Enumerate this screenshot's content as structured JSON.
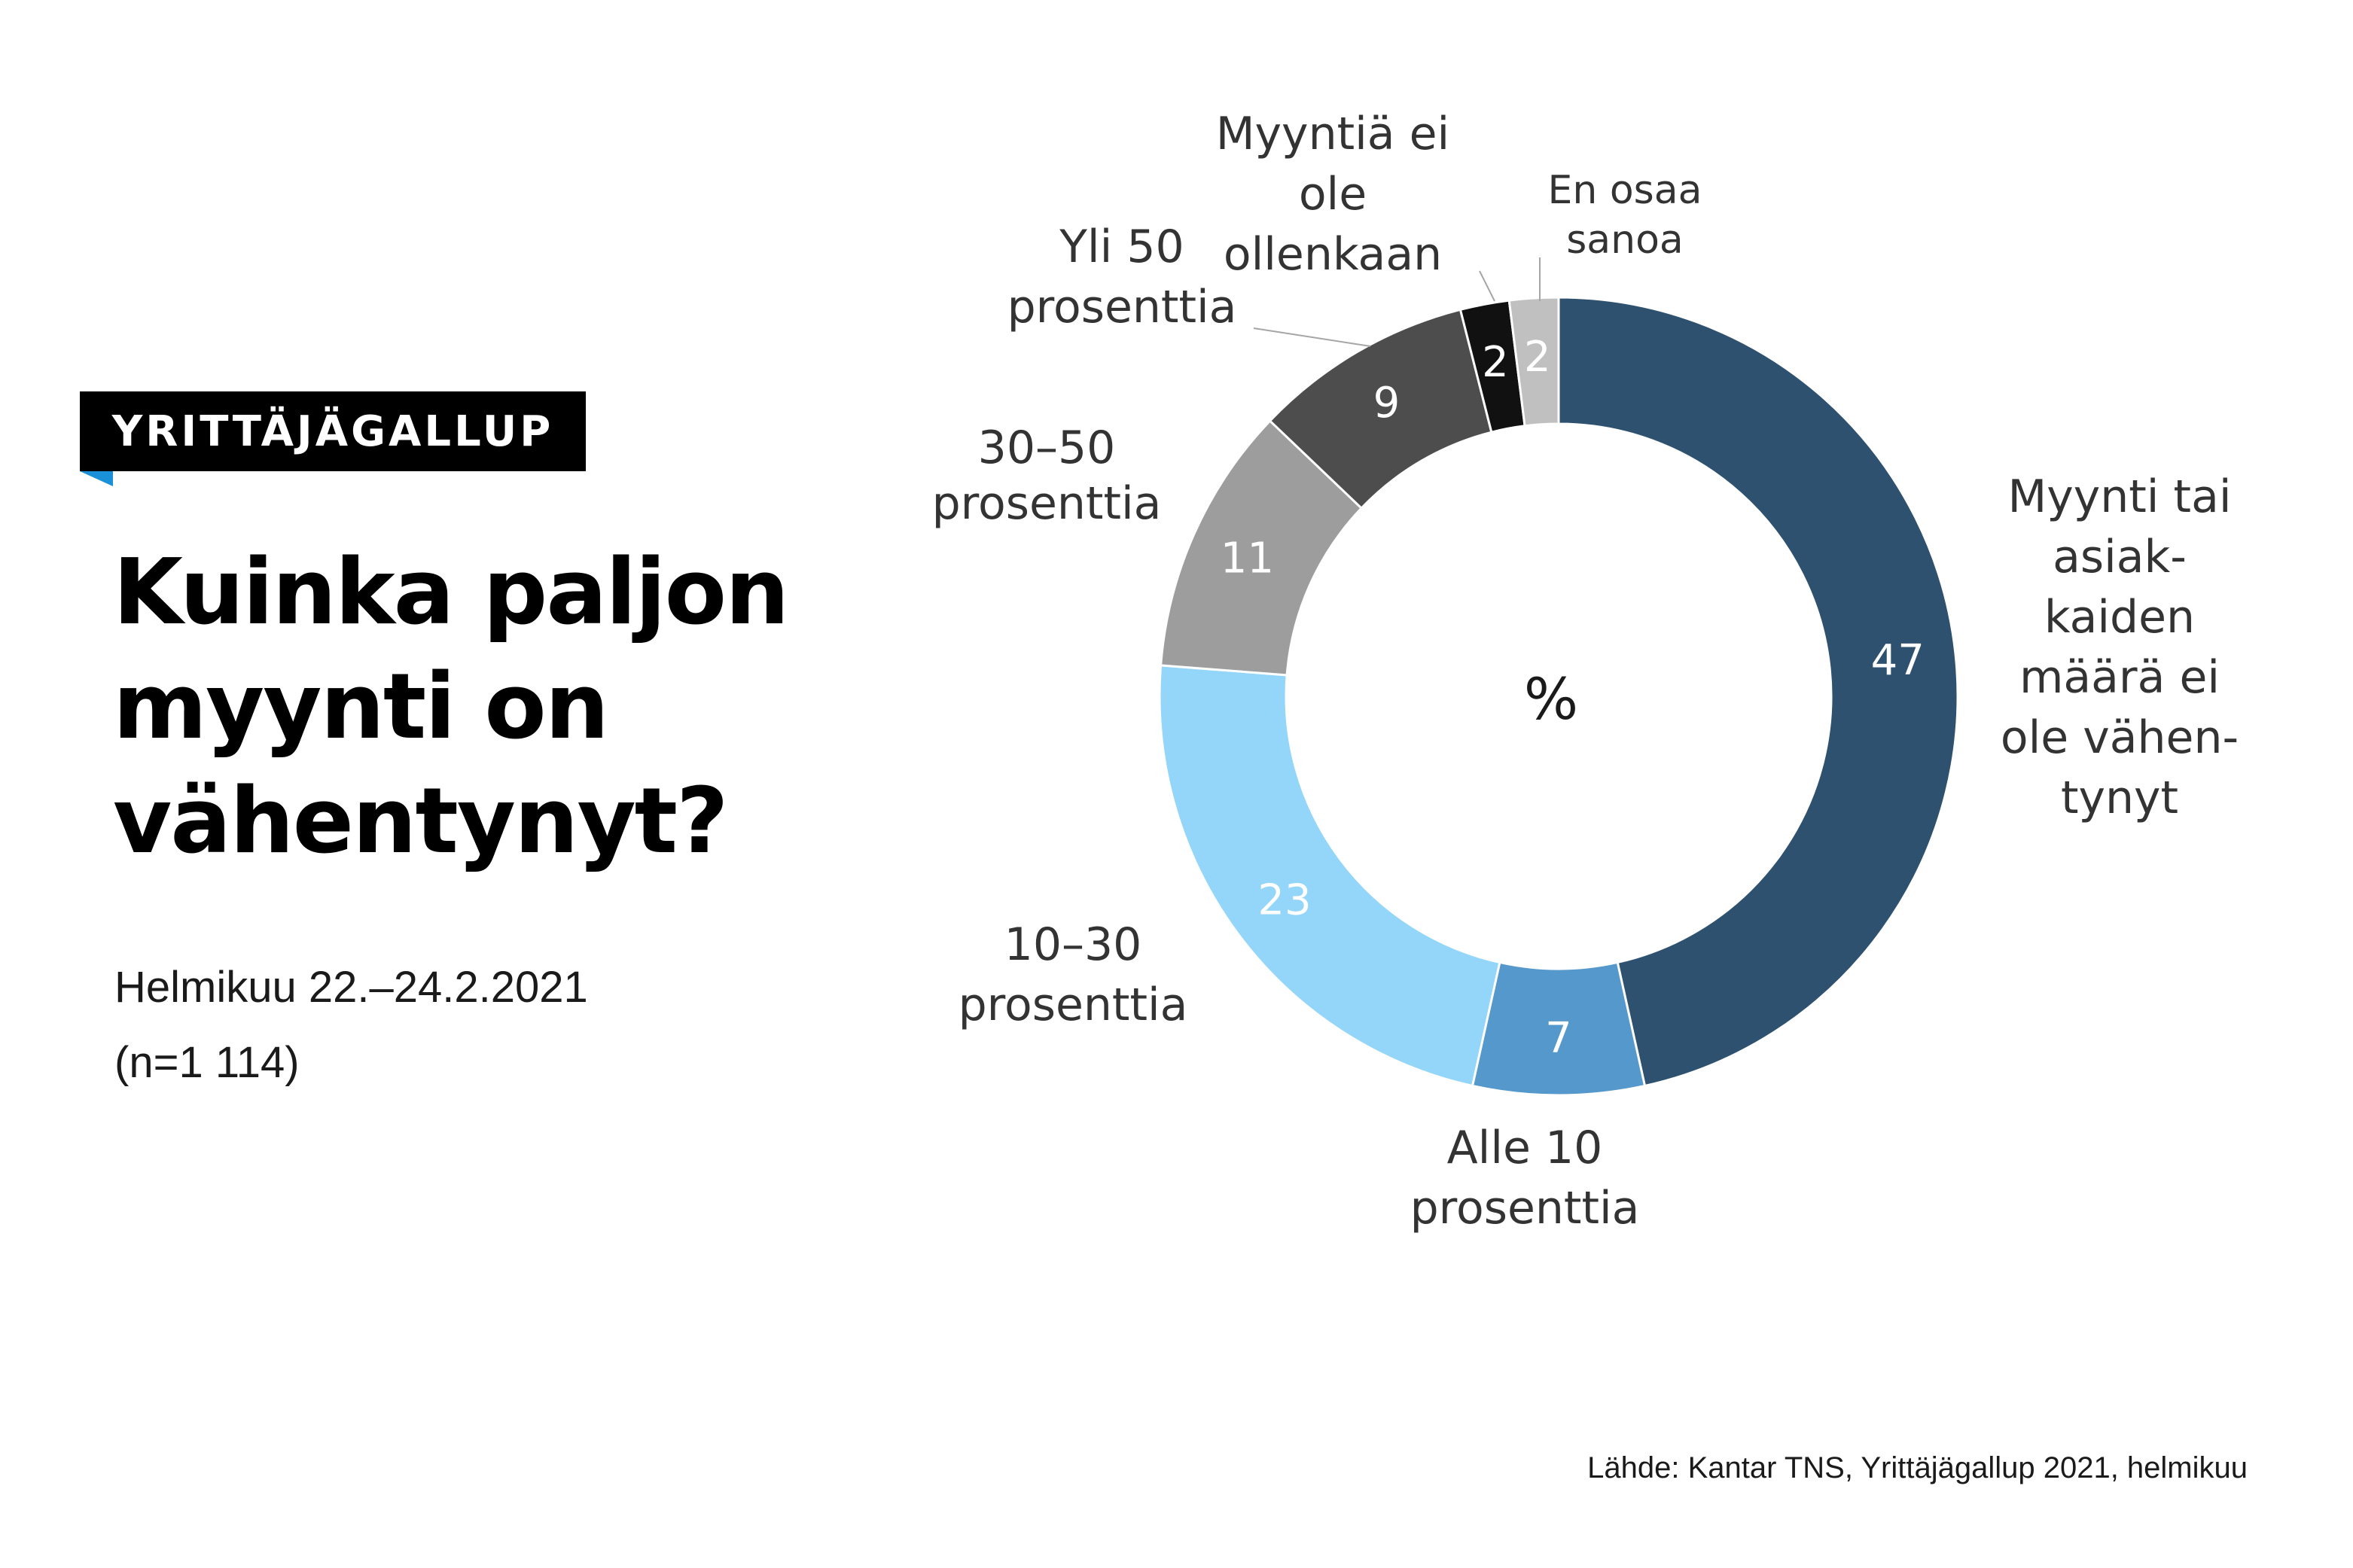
{
  "header": {
    "badge": "YRITTÄJÄGALLUP",
    "title_lines": [
      "Kuinka paljon",
      "myynti on",
      "vähentynyt?"
    ],
    "subtitle_lines": [
      "Helmikuu 22.–24.2.2021",
      "(n=1 114)"
    ],
    "source": "Lähde: Kantar TNS, Yrittäjägallup 2021, helmikuu",
    "badge_color": "#000000",
    "badge_accent": "#1a90d9"
  },
  "chart_data": {
    "type": "pie",
    "donut": true,
    "center_label": "%",
    "slices": [
      {
        "label_lines": [
          "Myynti tai",
          "asiak-",
          "kaiden",
          "määrä ei",
          "ole vähen-",
          "tynyt"
        ],
        "value": 47,
        "color": "#2e5170",
        "value_color": "#ffffff"
      },
      {
        "label_lines": [
          "Alle 10",
          "prosenttia"
        ],
        "value": 7,
        "color": "#5598cc",
        "value_color": "#ffffff"
      },
      {
        "label_lines": [
          "10–30",
          "prosenttia"
        ],
        "value": 23,
        "color": "#94d5fa",
        "value_color": "#ffffff"
      },
      {
        "label_lines": [
          "30–50",
          "prosenttia"
        ],
        "value": 11,
        "color": "#9d9d9d",
        "value_color": "#ffffff"
      },
      {
        "label_lines": [
          "Yli 50",
          "prosenttia"
        ],
        "value": 9,
        "color": "#4d4d4d",
        "value_color": "#ffffff"
      },
      {
        "label_lines": [
          "Myyntiä ei",
          "ole",
          "ollenkaan"
        ],
        "value": 2,
        "color": "#111111",
        "value_color": "#ffffff"
      },
      {
        "label_lines": [
          "En osaa",
          "sanoa"
        ],
        "value": 2,
        "color": "#c0c0c0",
        "value_color": "#ffffff",
        "label_color": "#8c8c8c"
      }
    ]
  }
}
